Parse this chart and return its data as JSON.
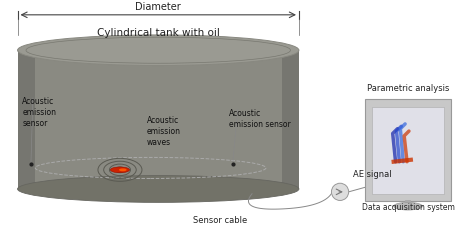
{
  "background_color": "#ffffff",
  "tank_body_color": "#8a8a82",
  "tank_top_color": "#9a9a92",
  "tank_side_color": "#7a7a72",
  "texts": {
    "diameter": "Diameter",
    "tank_label": "Cylindrical tank with oil",
    "ae_sensor_left": "Acoustic\nemission\nsensor",
    "ae_waves": "Acoustic\nemission\nwaves",
    "ae_sensor_right": "Acoustic\nemission sensor",
    "sensor_cable": "Sensor cable",
    "ae_signal": "AE signal",
    "parametric": "Parametric analysis",
    "data_acq": "Data acquisition system"
  },
  "sensor_dot_color": "#222222",
  "crack_red": "#cc2200",
  "crack_orange": "#ff5500",
  "wave_color": "#6a6a62",
  "dashed_color": "#aaaaaa",
  "arrow_color": "#444444",
  "cable_color": "#888888",
  "monitor_frame": "#b0b0b0",
  "monitor_bg": "#c8c8c8",
  "monitor_screen": "#e0e0e8",
  "connector_color": "#cccccc"
}
